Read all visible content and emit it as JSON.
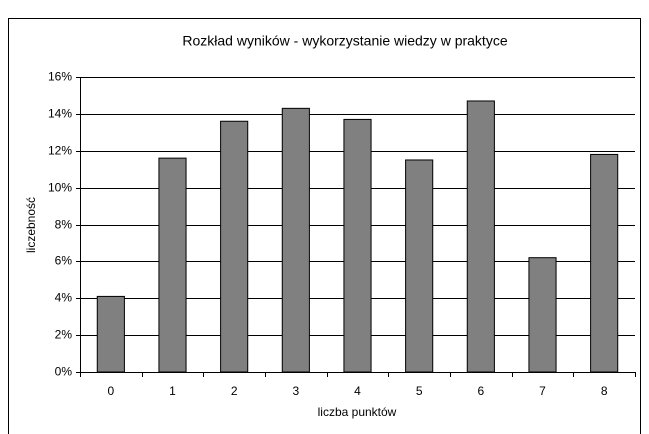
{
  "chart_data": {
    "type": "bar",
    "title": "Rozkład wyników - wykorzystanie wiedzy w praktyce",
    "x_label": "liczba punktów",
    "y_label": "liczebność",
    "categories": [
      "0",
      "1",
      "2",
      "3",
      "4",
      "5",
      "6",
      "7",
      "8"
    ],
    "values": [
      4.1,
      11.6,
      13.6,
      14.3,
      13.7,
      11.5,
      14.7,
      6.2,
      11.8
    ],
    "color": "#808080",
    "ylim": [
      0,
      16
    ],
    "yticks": [
      {
        "value": 0,
        "label": "0%"
      },
      {
        "value": 2,
        "label": "2%"
      },
      {
        "value": 4,
        "label": "4%"
      },
      {
        "value": 6,
        "label": "6%"
      },
      {
        "value": 8,
        "label": "8%"
      },
      {
        "value": 10,
        "label": "10%"
      },
      {
        "value": 12,
        "label": "12%"
      },
      {
        "value": 14,
        "label": "14%"
      },
      {
        "value": 16,
        "label": "16%"
      }
    ],
    "grid": true
  }
}
